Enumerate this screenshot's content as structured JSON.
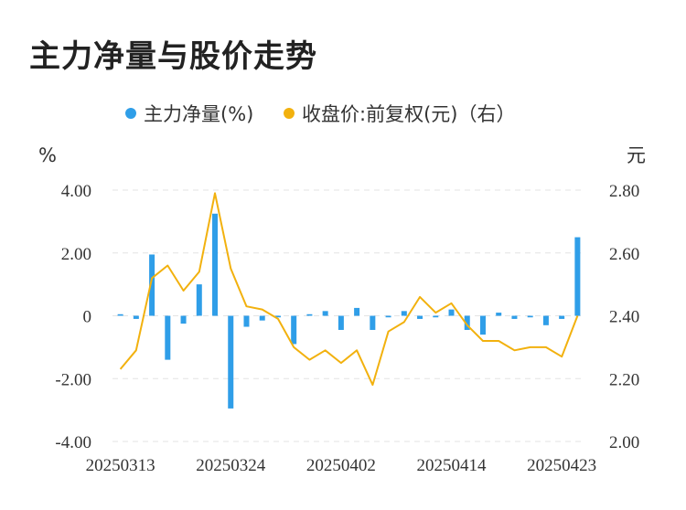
{
  "title": "主力净量与股价走势",
  "chart_data": {
    "type": "bar+line",
    "title": "主力净量与股价走势",
    "legend": [
      {
        "name": "主力净量(%)",
        "color": "#2f9ee8",
        "marker": "dot"
      },
      {
        "name": "收盘价:前复权(元)（右）",
        "color": "#f2b10e",
        "marker": "dot"
      }
    ],
    "legend_placement": "top-center",
    "left_axis": {
      "unit": "%",
      "ylim": [
        -4,
        4
      ],
      "ticks": [
        "4.00",
        "2.00",
        "0",
        "-2.00",
        "-4.00"
      ]
    },
    "right_axis": {
      "unit": "元",
      "ylim": [
        2.0,
        2.8
      ],
      "ticks": [
        "2.80",
        "2.60",
        "2.40",
        "2.20",
        "2.00"
      ]
    },
    "grid": true,
    "x_tick_labels": [
      "20250313",
      "20250324",
      "20250402",
      "20250414",
      "20250423"
    ],
    "x_tick_indices": [
      0,
      7,
      14,
      21,
      28
    ],
    "series": [
      {
        "name": "主力净量(%)",
        "type": "bar",
        "axis": "left",
        "color": "#2f9ee8",
        "values": [
          0.05,
          -0.1,
          1.95,
          -1.4,
          -0.25,
          1.0,
          3.25,
          -2.95,
          -0.35,
          -0.15,
          -0.05,
          -0.9,
          0.05,
          0.15,
          -0.45,
          0.25,
          -0.45,
          -0.05,
          0.15,
          -0.1,
          -0.05,
          0.2,
          -0.45,
          -0.6,
          0.1,
          -0.1,
          -0.05,
          -0.3,
          -0.1,
          2.5
        ]
      },
      {
        "name": "收盘价:前复权(元)（右）",
        "type": "line",
        "axis": "right",
        "color": "#f2b10e",
        "values": [
          2.23,
          2.29,
          2.52,
          2.56,
          2.48,
          2.54,
          2.79,
          2.55,
          2.43,
          2.42,
          2.39,
          2.3,
          2.26,
          2.29,
          2.25,
          2.29,
          2.18,
          2.35,
          2.38,
          2.46,
          2.41,
          2.44,
          2.37,
          2.32,
          2.32,
          2.29,
          2.3,
          2.3,
          2.27,
          2.4
        ]
      }
    ]
  }
}
